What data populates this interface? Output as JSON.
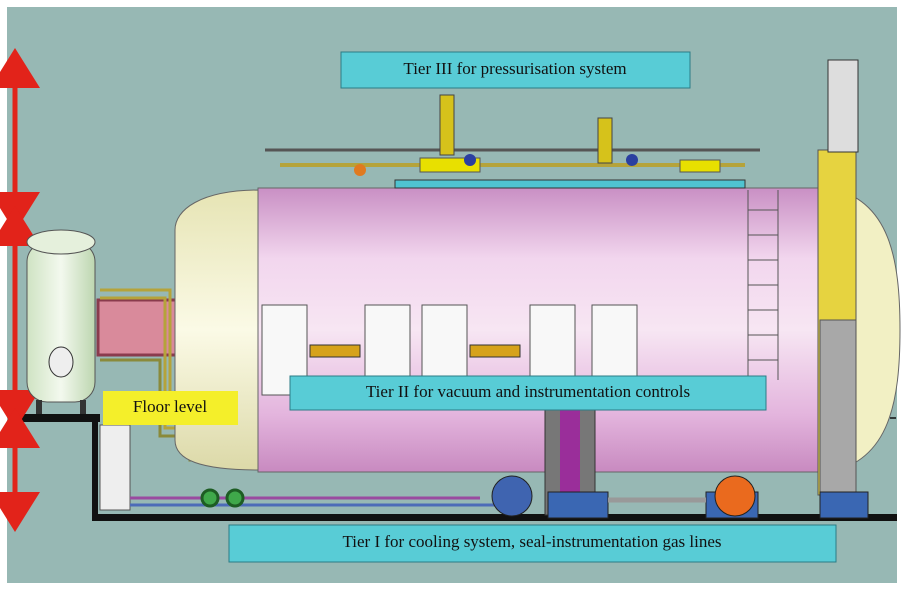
{
  "labels": {
    "tier_iii": "Tier III for pressurisation system",
    "tier_ii": "Tier II for vacuum and instrumentation controls",
    "floor_level": "Floor level",
    "tier_i": "Tier I for cooling system, seal-instrumentation gas lines"
  }
}
